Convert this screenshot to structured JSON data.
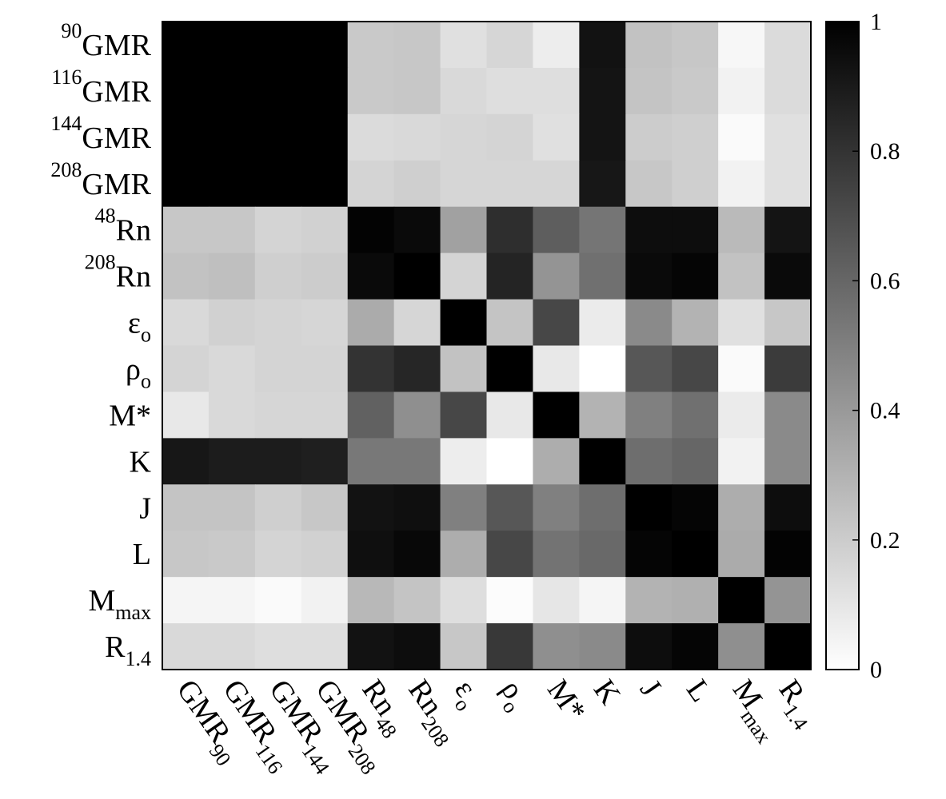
{
  "chart_data": {
    "type": "heatmap",
    "title": "",
    "xlabel": "",
    "ylabel": "",
    "labels": [
      {
        "id": "gmr90",
        "base": "GMR",
        "sup": "90",
        "sub": "",
        "x_base": "GMR",
        "x_sub": "90"
      },
      {
        "id": "gmr116",
        "base": "GMR",
        "sup": "116",
        "sub": "",
        "x_base": "GMR",
        "x_sub": "116"
      },
      {
        "id": "gmr144",
        "base": "GMR",
        "sup": "144",
        "sub": "",
        "x_base": "GMR",
        "x_sub": "144"
      },
      {
        "id": "gmr208",
        "base": "GMR",
        "sup": "208",
        "sub": "",
        "x_base": "GMR",
        "x_sub": "208"
      },
      {
        "id": "rn48",
        "base": "Rn",
        "sup": "48",
        "sub": "",
        "x_base": "Rn",
        "x_sub": "48"
      },
      {
        "id": "rn208",
        "base": "Rn",
        "sup": "208",
        "sub": "",
        "x_base": "Rn",
        "x_sub": "208"
      },
      {
        "id": "eps0",
        "base": "ε",
        "sup": "",
        "sub": "o",
        "x_base": "ε",
        "x_sub": "o"
      },
      {
        "id": "rho0",
        "base": "ρ",
        "sup": "",
        "sub": "o",
        "x_base": "ρ",
        "x_sub": "o"
      },
      {
        "id": "mstar",
        "base": "M*",
        "sup": "",
        "sub": "",
        "x_base": "M*",
        "x_sub": ""
      },
      {
        "id": "K",
        "base": "K",
        "sup": "",
        "sub": "",
        "x_base": "K",
        "x_sub": ""
      },
      {
        "id": "J",
        "base": "J",
        "sup": "",
        "sub": "",
        "x_base": "J",
        "x_sub": ""
      },
      {
        "id": "L",
        "base": "L",
        "sup": "",
        "sub": "",
        "x_base": "L",
        "x_sub": ""
      },
      {
        "id": "mmax",
        "base": "M",
        "sup": "",
        "sub": "max",
        "x_base": "M",
        "x_sub": "max"
      },
      {
        "id": "r14",
        "base": "R",
        "sup": "",
        "sub": "1.4",
        "x_base": "R",
        "x_sub": "1.4"
      }
    ],
    "matrix": [
      [
        1,
        1,
        1,
        1,
        0.21,
        0.22,
        0.12,
        0.16,
        0.07,
        0.93,
        0.24,
        0.22,
        0.03,
        0.14
      ],
      [
        1,
        1,
        1,
        1,
        0.21,
        0.22,
        0.15,
        0.13,
        0.13,
        0.92,
        0.23,
        0.21,
        0.05,
        0.14
      ],
      [
        1,
        1,
        1,
        1,
        0.14,
        0.15,
        0.16,
        0.17,
        0.12,
        0.92,
        0.2,
        0.19,
        0.02,
        0.12
      ],
      [
        1,
        1,
        1,
        1,
        0.17,
        0.19,
        0.16,
        0.16,
        0.16,
        0.91,
        0.22,
        0.19,
        0.05,
        0.12
      ],
      [
        0.22,
        0.22,
        0.17,
        0.18,
        0.99,
        0.96,
        0.37,
        0.82,
        0.63,
        0.54,
        0.95,
        0.95,
        0.27,
        0.92
      ],
      [
        0.24,
        0.25,
        0.19,
        0.2,
        0.96,
        1,
        0.17,
        0.86,
        0.42,
        0.56,
        0.96,
        0.98,
        0.24,
        0.96
      ],
      [
        0.15,
        0.18,
        0.17,
        0.16,
        0.33,
        0.16,
        1,
        0.23,
        0.72,
        0.08,
        0.46,
        0.3,
        0.12,
        0.22
      ],
      [
        0.17,
        0.15,
        0.17,
        0.17,
        0.8,
        0.85,
        0.24,
        1,
        0.09,
        0.0,
        0.66,
        0.72,
        0.02,
        0.77
      ],
      [
        0.09,
        0.15,
        0.16,
        0.16,
        0.62,
        0.44,
        0.72,
        0.09,
        1,
        0.3,
        0.5,
        0.56,
        0.08,
        0.46
      ],
      [
        0.91,
        0.89,
        0.89,
        0.88,
        0.53,
        0.53,
        0.07,
        0.0,
        0.32,
        1,
        0.57,
        0.6,
        0.05,
        0.46
      ],
      [
        0.23,
        0.23,
        0.19,
        0.22,
        0.93,
        0.94,
        0.5,
        0.66,
        0.5,
        0.57,
        1,
        0.98,
        0.32,
        0.95
      ],
      [
        0.22,
        0.21,
        0.17,
        0.18,
        0.94,
        0.97,
        0.32,
        0.72,
        0.55,
        0.59,
        0.98,
        1,
        0.33,
        0.99
      ],
      [
        0.04,
        0.04,
        0.02,
        0.05,
        0.28,
        0.23,
        0.13,
        0.01,
        0.1,
        0.04,
        0.3,
        0.31,
        1,
        0.42
      ],
      [
        0.15,
        0.15,
        0.13,
        0.13,
        0.93,
        0.95,
        0.22,
        0.78,
        0.44,
        0.46,
        0.95,
        0.98,
        0.44,
        1
      ]
    ],
    "colorbar": {
      "range": [
        0,
        1
      ],
      "ticks": [
        "0",
        "0.2",
        "0.4",
        "0.6",
        "0.8",
        "1"
      ],
      "colormap": "grayscale-white-to-black"
    },
    "colors": {
      "low": "#ffffff",
      "high": "#000000",
      "frame": "#000000"
    },
    "grid": false,
    "legend": "colorbar-right"
  }
}
